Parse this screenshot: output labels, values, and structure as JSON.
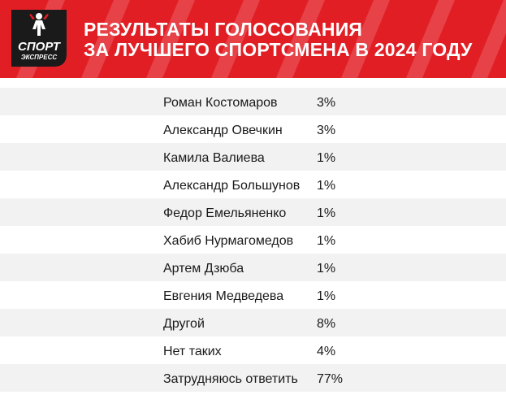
{
  "header": {
    "title_line1": "РЕЗУЛЬТАТЫ ГОЛОСОВАНИЯ",
    "title_line2": "ЗА ЛУЧШЕГО СПОРТСМЕНА В 2024 ГОДУ",
    "logo_line1": "СПОРТ",
    "logo_line2": "ЭКСПРЕСС",
    "accent_color": "#e21e25"
  },
  "chart_data": {
    "type": "table",
    "title": "РЕЗУЛЬТАТЫ ГОЛОСОВАНИЯ ЗА ЛУЧШЕГО СПОРТСМЕНА В 2024 ГОДУ",
    "rows": [
      {
        "name": "Роман Костомаров",
        "value": "3%"
      },
      {
        "name": "Александр Овечкин",
        "value": "3%"
      },
      {
        "name": "Камила Валиева",
        "value": "1%"
      },
      {
        "name": "Александр Большунов",
        "value": "1%"
      },
      {
        "name": "Федор Емельяненко",
        "value": "1%"
      },
      {
        "name": "Хабиб Нурмагомедов",
        "value": "1%"
      },
      {
        "name": "Артем Дзюба",
        "value": "1%"
      },
      {
        "name": "Евгения Медведева",
        "value": "1%"
      },
      {
        "name": "Другой",
        "value": "8%"
      },
      {
        "name": "Нет таких",
        "value": "4%"
      },
      {
        "name": "Затрудняюсь ответить",
        "value": "77%"
      }
    ]
  }
}
